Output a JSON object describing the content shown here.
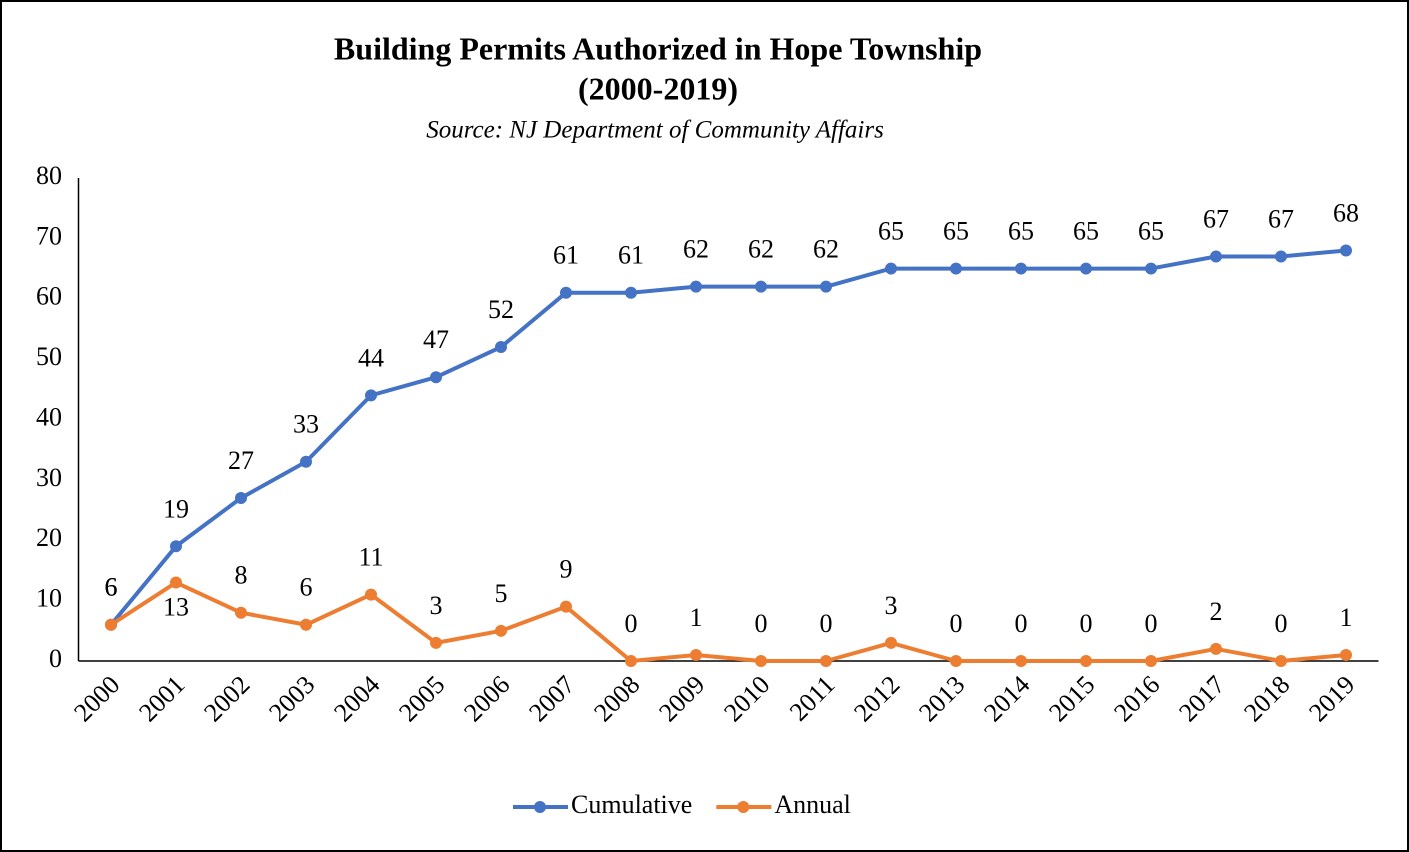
{
  "chart_data": {
    "type": "line",
    "title": [
      "Building Permits Authorized in Hope Township",
      "(2000-2019)"
    ],
    "subtitle": "Source: NJ Department of Community Affairs",
    "categories": [
      "2000",
      "2001",
      "2002",
      "2003",
      "2004",
      "2005",
      "2006",
      "2007",
      "2008",
      "2009",
      "2010",
      "2011",
      "2012",
      "2013",
      "2014",
      "2015",
      "2016",
      "2017",
      "2018",
      "2019"
    ],
    "series": [
      {
        "name": "Cumulative",
        "color": "#4472c4",
        "values": [
          6,
          19,
          27,
          33,
          44,
          47,
          52,
          61,
          61,
          62,
          62,
          62,
          65,
          65,
          65,
          65,
          65,
          67,
          67,
          68
        ]
      },
      {
        "name": "Annual",
        "color": "#ed7d31",
        "values": [
          6,
          13,
          8,
          6,
          11,
          3,
          5,
          9,
          0,
          1,
          0,
          0,
          3,
          0,
          0,
          0,
          0,
          2,
          0,
          1
        ]
      }
    ],
    "ylim": [
      0,
      80
    ],
    "yticks": [
      0,
      10,
      20,
      30,
      40,
      50,
      60,
      70,
      80
    ],
    "grid": false,
    "legend": "bottom"
  }
}
